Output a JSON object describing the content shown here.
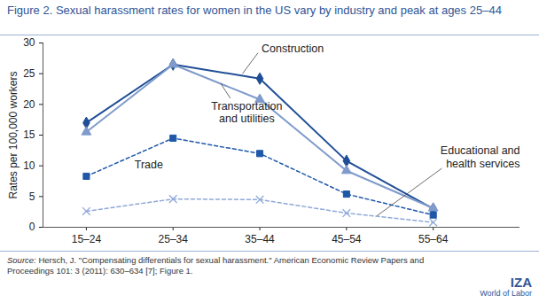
{
  "chart_data": {
    "type": "line",
    "title": "Figure 2. Sexual harassment rates for women in the US vary by industry and peak at ages 25–44",
    "y_label": "Rates per 100,000 workers",
    "categories": [
      "15–24",
      "25–34",
      "35–44",
      "45–54",
      "55–64"
    ],
    "series": [
      {
        "name": "Construction",
        "color": "#1f4e96",
        "marker": "diamond",
        "line_style": "solid",
        "values": [
          17,
          26.5,
          24.2,
          10.8,
          3
        ]
      },
      {
        "name": "Transportation and utilities",
        "color": "#7f9acb",
        "marker": "triangle",
        "line_style": "solid",
        "values": [
          15.5,
          26.5,
          20.8,
          9.2,
          3.1
        ]
      },
      {
        "name": "Trade",
        "color": "#1f58a8",
        "marker": "square",
        "line_style": "dashed",
        "values": [
          8.3,
          14.5,
          12,
          5.4,
          2
        ]
      },
      {
        "name": "Educational and health services",
        "color": "#8fa8d8",
        "marker": "times",
        "line_style": "dashed",
        "values": [
          2.6,
          4.6,
          4.5,
          2.3,
          0.8
        ]
      }
    ],
    "ylim": [
      0,
      30
    ],
    "yticks": [
      0,
      5,
      10,
      15,
      20,
      25,
      30
    ],
    "grid": false,
    "source_label": "Source:",
    "source": "Hersch, J. \"Compensating differentials for sexual harassment.\" American Economic Review Papers and Proceedings 101: 3 (2011): 630–634 [7]; Figure 1.",
    "logo": [
      "IZA",
      "World of Labor"
    ]
  }
}
